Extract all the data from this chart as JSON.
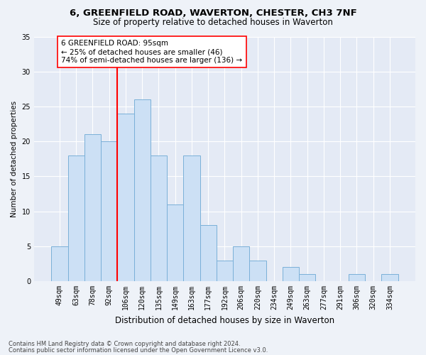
{
  "title1": "6, GREENFIELD ROAD, WAVERTON, CHESTER, CH3 7NF",
  "title2": "Size of property relative to detached houses in Waverton",
  "xlabel": "Distribution of detached houses by size in Waverton",
  "ylabel": "Number of detached properties",
  "categories": [
    "49sqm",
    "63sqm",
    "78sqm",
    "92sqm",
    "106sqm",
    "120sqm",
    "135sqm",
    "149sqm",
    "163sqm",
    "177sqm",
    "192sqm",
    "206sqm",
    "220sqm",
    "234sqm",
    "249sqm",
    "263sqm",
    "277sqm",
    "291sqm",
    "306sqm",
    "320sqm",
    "334sqm"
  ],
  "values": [
    5,
    18,
    21,
    20,
    24,
    26,
    18,
    11,
    18,
    8,
    3,
    5,
    3,
    0,
    2,
    1,
    0,
    0,
    1,
    0,
    1
  ],
  "bar_color": "#cce0f5",
  "bar_edge_color": "#7ab0d8",
  "vline_x": 3.5,
  "vline_color": "red",
  "annotation_text": "6 GREENFIELD ROAD: 95sqm\n← 25% of detached houses are smaller (46)\n74% of semi-detached houses are larger (136) →",
  "annotation_box_color": "white",
  "annotation_box_edge": "red",
  "ylim": [
    0,
    35
  ],
  "yticks": [
    0,
    5,
    10,
    15,
    20,
    25,
    30,
    35
  ],
  "footer1": "Contains HM Land Registry data © Crown copyright and database right 2024.",
  "footer2": "Contains public sector information licensed under the Open Government Licence v3.0.",
  "bg_color": "#eef2f8",
  "plot_bg_color": "#e4eaf5",
  "title1_fontsize": 9.5,
  "title2_fontsize": 8.5,
  "xlabel_fontsize": 8.5,
  "ylabel_fontsize": 7.5,
  "tick_fontsize": 7,
  "footer_fontsize": 6,
  "annot_fontsize": 7.5
}
